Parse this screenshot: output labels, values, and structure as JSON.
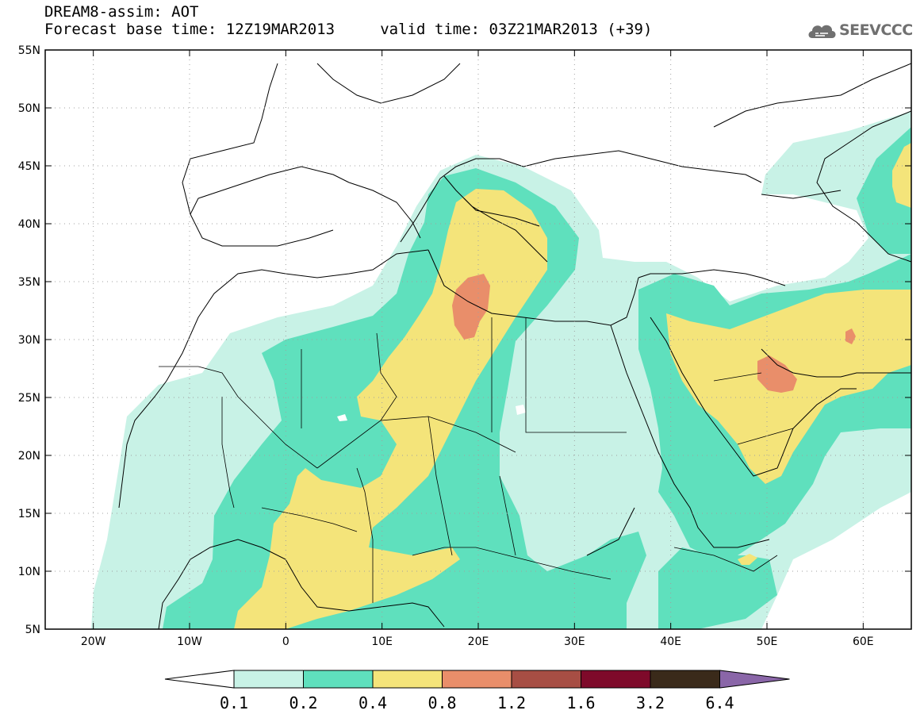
{
  "title": {
    "line1": "DREAM8-assim: AOT",
    "line2": "Forecast base time: 12Z19MAR2013     valid time: 03Z21MAR2013 (+39)"
  },
  "logo": {
    "text": "SEEVCCC",
    "icon": "cloud-icon"
  },
  "map": {
    "projection": "lat-lon",
    "lon_range": [
      -25,
      65
    ],
    "lat_range": [
      5,
      55
    ],
    "lat_labels": [
      "5N",
      "10N",
      "15N",
      "20N",
      "25N",
      "30N",
      "35N",
      "40N",
      "45N",
      "50N",
      "55N"
    ],
    "lat_values": [
      5,
      10,
      15,
      20,
      25,
      30,
      35,
      40,
      45,
      50,
      55
    ],
    "lon_labels": [
      "20W",
      "10W",
      "0",
      "10E",
      "20E",
      "30E",
      "40E",
      "50E",
      "60E"
    ],
    "lon_values": [
      -20,
      -10,
      0,
      10,
      20,
      30,
      40,
      50,
      60
    ],
    "grid": true
  },
  "colorbar": {
    "labels": [
      "0.1",
      "0.2",
      "0.4",
      "0.8",
      "1.2",
      "1.6",
      "3.2",
      "6.4"
    ],
    "colors": [
      "#c8f2e6",
      "#5fe0bd",
      "#f4e47a",
      "#e98e6a",
      "#a74e44",
      "#7e0a2a",
      "#3a2a1a"
    ],
    "low_color": "#ffffff",
    "high_color": "#8a66a8"
  }
}
